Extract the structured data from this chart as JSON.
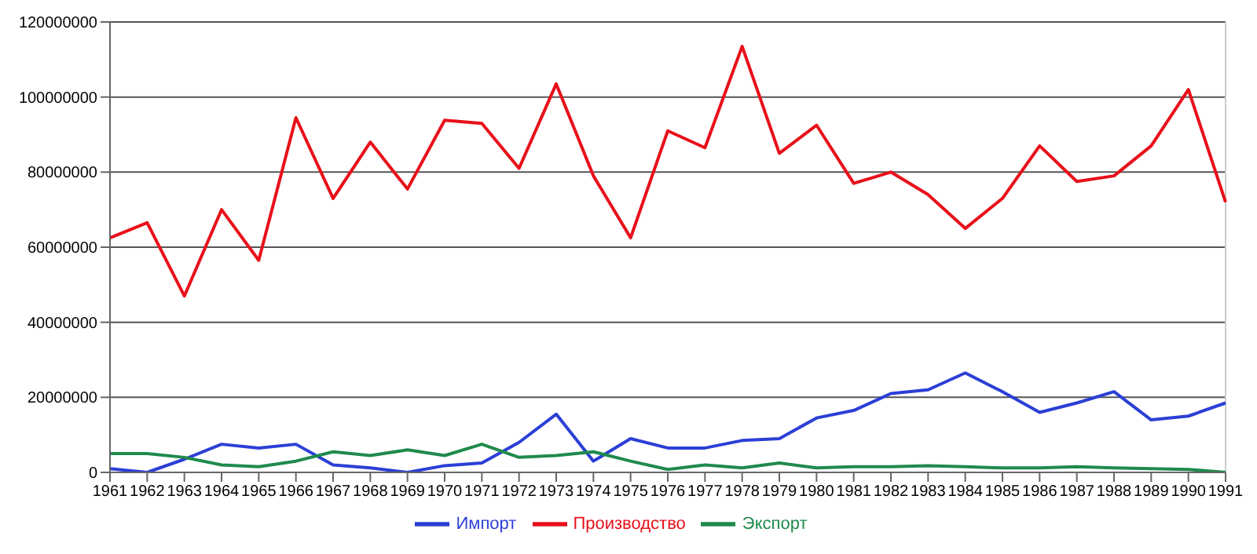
{
  "chart_data": {
    "type": "line",
    "categories": [
      "1961",
      "1962",
      "1963",
      "1964",
      "1965",
      "1966",
      "1967",
      "1968",
      "1969",
      "1970",
      "1971",
      "1972",
      "1973",
      "1974",
      "1975",
      "1976",
      "1977",
      "1978",
      "1979",
      "1980",
      "1981",
      "1982",
      "1983",
      "1984",
      "1985",
      "1986",
      "1987",
      "1988",
      "1989",
      "1990",
      "1991"
    ],
    "series": [
      {
        "name": "Импорт",
        "color": "#2b3fd6",
        "values": [
          1000000,
          0,
          3500000,
          7500000,
          6500000,
          7500000,
          2000000,
          1200000,
          0,
          1800000,
          2500000,
          8000000,
          15500000,
          3000000,
          9000000,
          6500000,
          6500000,
          8500000,
          9000000,
          14500000,
          16500000,
          21000000,
          22000000,
          26500000,
          21500000,
          16000000,
          18500000,
          21500000,
          14000000,
          15000000,
          18500000
        ]
      },
      {
        "name": "Производство",
        "color": "#e8101a",
        "values": [
          62500000,
          66500000,
          47000000,
          70000000,
          56500000,
          94500000,
          73000000,
          88000000,
          75500000,
          93800000,
          93000000,
          81000000,
          103500000,
          79000000,
          62500000,
          91000000,
          86500000,
          113500000,
          85000000,
          92500000,
          77000000,
          80000000,
          74000000,
          65000000,
          73000000,
          87000000,
          77500000,
          79000000,
          87000000,
          102000000,
          72000000
        ]
      },
      {
        "name": "Экспорт",
        "color": "#1f8a4c",
        "values": [
          5000000,
          5000000,
          4000000,
          2000000,
          1500000,
          3000000,
          5500000,
          4500000,
          6000000,
          4500000,
          7500000,
          4000000,
          4500000,
          5500000,
          3000000,
          800000,
          2000000,
          1200000,
          2500000,
          1200000,
          1500000,
          1500000,
          1800000,
          1500000,
          1200000,
          1200000,
          1500000,
          1200000,
          1000000,
          800000,
          0
        ]
      }
    ],
    "ylim": [
      0,
      120000000
    ],
    "yticks": [
      0,
      20000000,
      40000000,
      60000000,
      80000000,
      100000000,
      120000000
    ],
    "grid": "y",
    "legend": "bottom",
    "marker": "none",
    "line_style": "solid"
  }
}
